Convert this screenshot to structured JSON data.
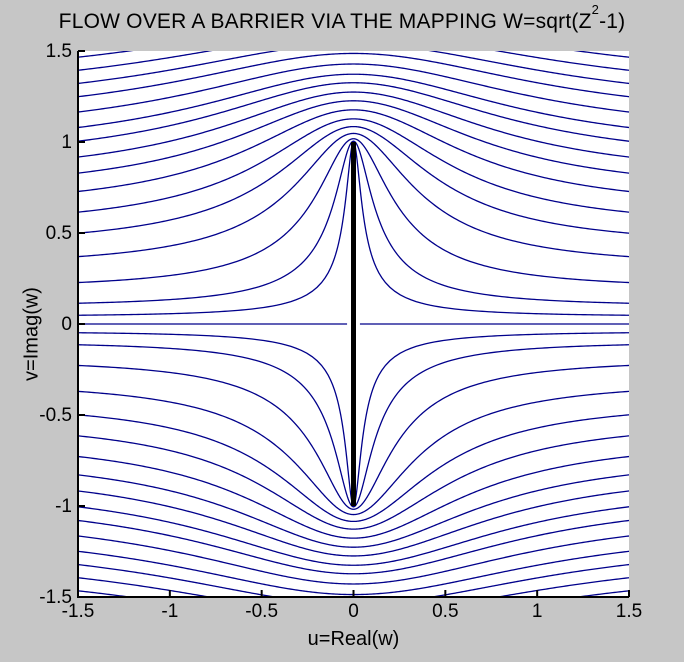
{
  "chart_data": {
    "type": "line",
    "subtype": "streamline-contour-plot",
    "title": "FLOW OVER A BARRIER VIA THE MAPPING W=sqrt(Z²-1)",
    "title_parts": {
      "prefix": "FLOW OVER A BARRIER VIA THE MAPPING W=sqrt(Z",
      "sup": "2",
      "suffix": "-1)"
    },
    "xlabel": "u=Real(w)",
    "ylabel": "v=Imag(w)",
    "xlim": [
      -1.5,
      1.5
    ],
    "ylim": [
      -1.5,
      1.5
    ],
    "x_ticks": {
      "values": [
        -1.5,
        -1,
        -0.5,
        0,
        0.5,
        1,
        1.5
      ],
      "labels": [
        "-1.5",
        "-1",
        "-0.5",
        "0",
        "0.5",
        "1",
        "1.5"
      ]
    },
    "y_ticks": {
      "values": [
        -1.5,
        -1,
        -0.5,
        0,
        0.5,
        1,
        1.5
      ],
      "labels": [
        "-1.5",
        "-1",
        "-0.5",
        "0",
        "0.5",
        "1",
        "1.5"
      ]
    },
    "mapping": "w = sqrt(z^2 - 1)",
    "description": "Streamlines of uniform flow past a vertical flat-plate barrier: images of horizontal lines Im(z)=c under w=sqrt(z^2-1), drawn in the w-plane and mirrored for negative c.",
    "stream_levels_im_z": [
      0.04,
      0.095,
      0.19,
      0.31,
      0.42,
      0.52,
      0.62,
      0.71,
      0.79,
      0.87,
      0.94,
      1.02,
      1.1,
      1.17,
      1.24,
      1.31
    ],
    "center_streamline": {
      "v": 0,
      "gap_half_width_u": 0.035
    },
    "barrier": {
      "u": 0,
      "v_from": -1,
      "v_to": 1
    },
    "grid": false,
    "legend": false,
    "axes_box": "left-and-bottom-only",
    "tick_direction": "in",
    "colors": {
      "streamline": "#00008b",
      "barrier": "#000000",
      "axis": "#000000",
      "figure_bg": "#c6c6c6",
      "plot_bg": "#ffffff",
      "text": "#000000"
    }
  }
}
